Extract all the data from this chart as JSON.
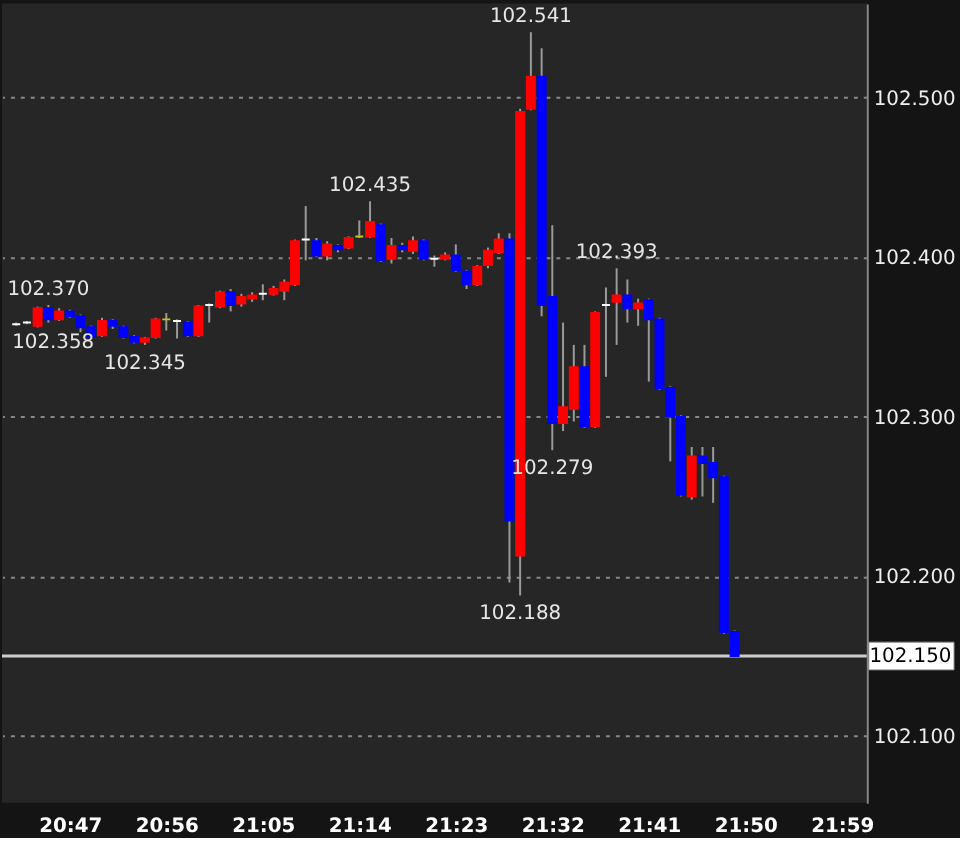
{
  "chart_data": {
    "type": "candlestick",
    "x": [
      20.7,
      20.7167,
      20.7333,
      20.75,
      20.7667,
      20.7833,
      20.8,
      20.8167,
      20.8333,
      20.85,
      20.8667,
      20.8833,
      20.9,
      20.9167,
      20.9333,
      20.95,
      20.9667,
      20.9833,
      21.0,
      21.0167,
      21.0333,
      21.05,
      21.0667,
      21.0833,
      21.1,
      21.1167,
      21.1333,
      21.15,
      21.1667,
      21.1833,
      21.2,
      21.2167,
      21.2333,
      21.25,
      21.2667,
      21.2833,
      21.3,
      21.3167,
      21.3333,
      21.35,
      21.3667,
      21.3833,
      21.4,
      21.4167,
      21.4333,
      21.45,
      21.4667,
      21.4833,
      21.5,
      21.5167,
      21.5333,
      21.55,
      21.5667,
      21.5833,
      21.6,
      21.6167,
      21.6333,
      21.65,
      21.6667,
      21.6833,
      21.7,
      21.7167,
      21.7333,
      21.75,
      21.7667,
      21.7833,
      21.8,
      21.8167
    ],
    "ohlc": [
      [
        102.358,
        102.359,
        102.357,
        102.358
      ],
      [
        102.359,
        102.36,
        102.358,
        102.359
      ],
      [
        102.357,
        102.369,
        102.356,
        102.368
      ],
      [
        102.368,
        102.37,
        102.359,
        102.361
      ],
      [
        102.361,
        102.368,
        102.36,
        102.366
      ],
      [
        102.366,
        102.367,
        102.362,
        102.363
      ],
      [
        102.363,
        102.364,
        102.353,
        102.356
      ],
      [
        102.356,
        102.357,
        102.349,
        102.35
      ],
      [
        102.351,
        102.362,
        102.35,
        102.36
      ],
      [
        102.36,
        102.361,
        102.355,
        102.357
      ],
      [
        102.356,
        102.357,
        102.349,
        102.35
      ],
      [
        102.35,
        102.351,
        102.346,
        102.347
      ],
      [
        102.347,
        102.35,
        102.345,
        102.349
      ],
      [
        102.35,
        102.362,
        102.349,
        102.361
      ],
      [
        102.361,
        102.365,
        102.354,
        102.361
      ],
      [
        102.36,
        102.361,
        102.349,
        102.36
      ],
      [
        102.359,
        102.36,
        102.35,
        102.351
      ],
      [
        102.351,
        102.37,
        102.35,
        102.369
      ],
      [
        102.37,
        102.371,
        102.359,
        102.37
      ],
      [
        102.369,
        102.379,
        102.368,
        102.378
      ],
      [
        102.378,
        102.38,
        102.366,
        102.37
      ],
      [
        102.371,
        102.377,
        102.369,
        102.375
      ],
      [
        102.374,
        102.378,
        102.372,
        102.376
      ],
      [
        102.377,
        102.383,
        102.373,
        102.377
      ],
      [
        102.377,
        102.382,
        102.376,
        102.38
      ],
      [
        102.379,
        102.386,
        102.373,
        102.384
      ],
      [
        102.383,
        102.411,
        102.382,
        102.41
      ],
      [
        102.411,
        102.432,
        102.398,
        102.411
      ],
      [
        102.41,
        102.412,
        102.4,
        102.401
      ],
      [
        102.401,
        102.41,
        102.398,
        102.408
      ],
      [
        102.407,
        102.408,
        102.403,
        102.405
      ],
      [
        102.406,
        102.413,
        102.405,
        102.412
      ],
      [
        102.413,
        102.423,
        102.412,
        102.413
      ],
      [
        102.413,
        102.435,
        102.412,
        102.422
      ],
      [
        102.42,
        102.421,
        102.397,
        102.398
      ],
      [
        102.399,
        102.412,
        102.396,
        102.407
      ],
      [
        102.407,
        102.409,
        102.403,
        102.405
      ],
      [
        102.404,
        102.413,
        102.402,
        102.41
      ],
      [
        102.41,
        102.411,
        102.398,
        102.399
      ],
      [
        102.399,
        102.401,
        102.394,
        102.399
      ],
      [
        102.399,
        102.403,
        102.398,
        102.401
      ],
      [
        102.401,
        102.408,
        102.391,
        102.392
      ],
      [
        102.391,
        102.392,
        102.38,
        102.383
      ],
      [
        102.383,
        102.395,
        102.382,
        102.394
      ],
      [
        102.395,
        102.406,
        102.393,
        102.404
      ],
      [
        102.403,
        102.415,
        102.402,
        102.411
      ],
      [
        102.411,
        102.415,
        102.196,
        102.235
      ],
      [
        102.213,
        102.493,
        102.188,
        102.491
      ],
      [
        102.493,
        102.541,
        102.492,
        102.513
      ],
      [
        102.513,
        102.531,
        102.363,
        102.37
      ],
      [
        102.375,
        102.42,
        102.279,
        102.296
      ],
      [
        102.296,
        102.359,
        102.291,
        102.306
      ],
      [
        102.305,
        102.345,
        102.297,
        102.331
      ],
      [
        102.331,
        102.345,
        102.293,
        102.294
      ],
      [
        102.294,
        102.366,
        102.293,
        102.365
      ],
      [
        102.37,
        102.381,
        102.325,
        102.37
      ],
      [
        102.372,
        102.393,
        102.345,
        102.376
      ],
      [
        102.376,
        102.386,
        102.359,
        102.368
      ],
      [
        102.368,
        102.374,
        102.357,
        102.371
      ],
      [
        102.373,
        102.374,
        102.322,
        102.361
      ],
      [
        102.361,
        102.362,
        102.317,
        102.318
      ],
      [
        102.318,
        102.319,
        102.272,
        102.3
      ],
      [
        102.3,
        102.301,
        102.25,
        102.251
      ],
      [
        102.25,
        102.281,
        102.248,
        102.275
      ],
      [
        102.275,
        102.281,
        102.25,
        102.271
      ],
      [
        102.271,
        102.281,
        102.246,
        102.262
      ],
      [
        102.262,
        102.263,
        102.164,
        102.165
      ],
      [
        102.165,
        102.166,
        102.15,
        102.15
      ]
    ],
    "colors": [
      "#ffffff",
      "#ffffff",
      "#ff0000",
      "#0000ff",
      "#ff0000",
      "#0000ff",
      "#0000ff",
      "#0000ff",
      "#ff0000",
      "#0000ff",
      "#0000ff",
      "#0000ff",
      "#ff0000",
      "#ff0000",
      "#c8c800",
      "#ffffff",
      "#0000ff",
      "#ff0000",
      "#ffffff",
      "#ff0000",
      "#0000ff",
      "#ff0000",
      "#ff0000",
      "#ffffff",
      "#ff0000",
      "#ff0000",
      "#ff0000",
      "#ffffff",
      "#0000ff",
      "#ff0000",
      "#0000ff",
      "#ff0000",
      "#c8c800",
      "#ff0000",
      "#0000ff",
      "#ff0000",
      "#0000ff",
      "#ff0000",
      "#0000ff",
      "#ffffff",
      "#ff0000",
      "#0000ff",
      "#0000ff",
      "#ff0000",
      "#ff0000",
      "#ff0000",
      "#0000ff",
      "#ff0000",
      "#ff0000",
      "#0000ff",
      "#0000ff",
      "#ff0000",
      "#ff0000",
      "#0000ff",
      "#ff0000",
      "#ffffff",
      "#ff0000",
      "#0000ff",
      "#ff0000",
      "#0000ff",
      "#0000ff",
      "#0000ff",
      "#0000ff",
      "#ff0000",
      "#0000ff",
      "#0000ff",
      "#0000ff",
      "#0000ff"
    ],
    "xlim": [
      20.6933,
      22.0067
    ],
    "xticks": [
      {
        "value": 20.7833,
        "label": "20:47"
      },
      {
        "value": 20.9333,
        "label": "20:56"
      },
      {
        "value": 21.0833,
        "label": "21:05"
      },
      {
        "value": 21.2333,
        "label": "21:14"
      },
      {
        "value": 21.3833,
        "label": "21:23"
      },
      {
        "value": 21.5333,
        "label": "21:32"
      },
      {
        "value": 21.6833,
        "label": "21:41"
      },
      {
        "value": 21.8333,
        "label": "21:50"
      },
      {
        "value": 21.9833,
        "label": "21:59"
      }
    ],
    "ylim": [
      102.058,
      102.559
    ],
    "yticks": [
      {
        "value": 102.1,
        "label": "102.100"
      },
      {
        "value": 102.2,
        "label": "102.200"
      },
      {
        "value": 102.3,
        "label": "102.300"
      },
      {
        "value": 102.4,
        "label": "102.400"
      },
      {
        "value": 102.5,
        "label": "102.500"
      }
    ],
    "grid": "y",
    "ref_lines": [
      {
        "axis": "y",
        "value": 102.15,
        "label": "102.150",
        "color": "#cccccc"
      }
    ],
    "annotations": [
      {
        "text": "102.358",
        "x": 20.7,
        "y": 102.358
      },
      {
        "text": "102.370",
        "x": 20.75,
        "y": 102.37
      },
      {
        "text": "102.345",
        "x": 20.9,
        "y": 102.345
      },
      {
        "text": "102.435",
        "x": 21.25,
        "y": 102.435
      },
      {
        "text": "102.541",
        "x": 21.5,
        "y": 102.541
      },
      {
        "text": "102.188",
        "x": 21.4833,
        "y": 102.188
      },
      {
        "text": "102.279",
        "x": 21.5333,
        "y": 102.279
      },
      {
        "text": "102.393",
        "x": 21.6333,
        "y": 102.393
      }
    ]
  }
}
